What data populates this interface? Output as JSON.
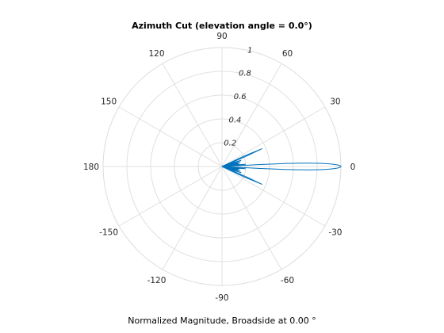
{
  "chart_data": {
    "type": "polar-line",
    "title": "Azimuth Cut (elevation angle = 0.0°)",
    "xlabel": "Normalized Magnitude, Broadside at 0.00 °",
    "angle_ticks": [
      "0",
      "30",
      "60",
      "90",
      "120",
      "150",
      "180",
      "-150",
      "-120",
      "-90",
      "-60",
      "-30"
    ],
    "angle_tick_values_deg": [
      0,
      30,
      60,
      90,
      120,
      150,
      180,
      -150,
      -120,
      -90,
      -60,
      -30
    ],
    "radial_ticks": [
      "0.2",
      "0.4",
      "0.6",
      "0.8",
      "1"
    ],
    "radial_tick_values": [
      0.2,
      0.4,
      0.6,
      0.8,
      1.0
    ],
    "rlim": [
      0,
      1
    ],
    "grid": true,
    "series": [
      {
        "color": "#0072bd",
        "main_lobe": {
          "peak": 1.0,
          "half_width_deg": 3.0
        },
        "side_lobes": [
          {
            "angle_deg": 5.5,
            "magnitude": 0.2
          },
          {
            "angle_deg": -5.5,
            "magnitude": 0.2
          },
          {
            "angle_deg": 8.0,
            "magnitude": 0.15
          },
          {
            "angle_deg": -8.0,
            "magnitude": 0.15
          },
          {
            "angle_deg": 11.0,
            "magnitude": 0.14
          },
          {
            "angle_deg": -11.0,
            "magnitude": 0.14
          },
          {
            "angle_deg": 14.0,
            "magnitude": 0.16
          },
          {
            "angle_deg": -14.0,
            "magnitude": 0.16
          },
          {
            "angle_deg": 18.0,
            "magnitude": 0.17
          },
          {
            "angle_deg": -18.0,
            "magnitude": 0.17
          },
          {
            "angle_deg": 24.0,
            "magnitude": 0.37
          },
          {
            "angle_deg": -24.0,
            "magnitude": 0.37
          }
        ]
      }
    ]
  }
}
